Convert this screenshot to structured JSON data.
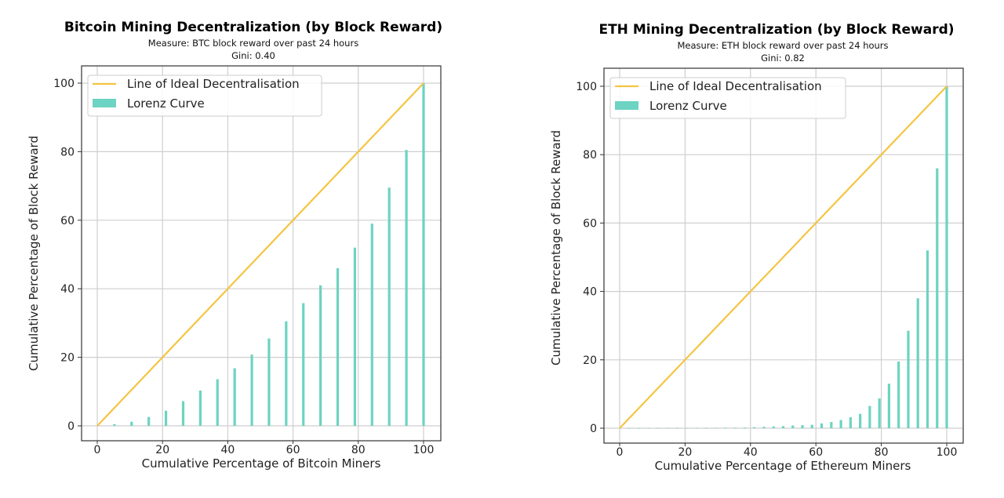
{
  "colors": {
    "ideal_line": "#f4c542",
    "bars": "#6dd3c2",
    "grid": "#cfcfcf",
    "axis": "#333333"
  },
  "chart_data": [
    {
      "type": "bar",
      "title": "Bitcoin Mining Decentralization (by Block Reward)",
      "subtitle": "Measure: BTC block reward over past 24 hours",
      "gini": "Gini: 0.40",
      "xlabel": "Cumulative Percentage of Bitcoin Miners",
      "ylabel": "Cumulative Percentage of Block Reward",
      "xlim": [
        0,
        100
      ],
      "ylim": [
        0,
        100
      ],
      "xticks": [
        "0",
        "20",
        "40",
        "60",
        "80",
        "100"
      ],
      "yticks": [
        "0",
        "20",
        "40",
        "60",
        "80",
        "100"
      ],
      "grid": true,
      "legend_position": "top-left",
      "legend": [
        "Line of Ideal Decentralisation",
        "Lorenz Curve"
      ],
      "ideal_line": [
        [
          0,
          0
        ],
        [
          100,
          100
        ]
      ],
      "x": [
        5.26,
        10.53,
        15.79,
        21.05,
        26.32,
        31.58,
        36.84,
        42.11,
        47.37,
        52.63,
        57.89,
        63.16,
        68.42,
        73.68,
        78.95,
        84.21,
        89.47,
        94.74,
        100
      ],
      "values": [
        0.5,
        1.2,
        2.6,
        4.4,
        7.2,
        10.3,
        13.6,
        16.8,
        20.8,
        25.5,
        30.5,
        35.8,
        41,
        46,
        52,
        59,
        69.5,
        80.5,
        100
      ]
    },
    {
      "type": "bar",
      "title": "ETH Mining Decentralization (by Block Reward)",
      "subtitle": "Measure: ETH block reward over past 24 hours",
      "gini": "Gini: 0.82",
      "xlabel": "Cumulative Percentage of Ethereum Miners",
      "ylabel": "Cumulative Percentage of Block Reward",
      "xlim": [
        0,
        100
      ],
      "ylim": [
        0,
        100
      ],
      "xticks": [
        "0",
        "20",
        "40",
        "60",
        "80",
        "100"
      ],
      "yticks": [
        "0",
        "20",
        "40",
        "60",
        "80",
        "100"
      ],
      "grid": true,
      "legend_position": "top-left",
      "legend": [
        "Line of Ideal Decentralisation",
        "Lorenz Curve"
      ],
      "ideal_line": [
        [
          0,
          0
        ],
        [
          100,
          100
        ]
      ],
      "x": [
        2.94,
        5.88,
        8.82,
        11.76,
        14.71,
        17.65,
        20.59,
        23.53,
        26.47,
        29.41,
        32.35,
        35.29,
        38.24,
        41.18,
        44.12,
        47.06,
        50,
        52.94,
        55.88,
        58.82,
        61.76,
        64.71,
        67.65,
        70.59,
        73.53,
        76.47,
        79.41,
        82.35,
        85.29,
        88.24,
        91.18,
        94.12,
        97.06,
        100
      ],
      "values": [
        0.02,
        0.03,
        0.04,
        0.05,
        0.06,
        0.07,
        0.08,
        0.09,
        0.1,
        0.12,
        0.14,
        0.16,
        0.2,
        0.3,
        0.4,
        0.5,
        0.6,
        0.8,
        0.9,
        1.0,
        1.4,
        1.8,
        2.4,
        3.2,
        4.2,
        6.5,
        8.7,
        13,
        19.5,
        28.5,
        38,
        52,
        76,
        100
      ]
    }
  ]
}
